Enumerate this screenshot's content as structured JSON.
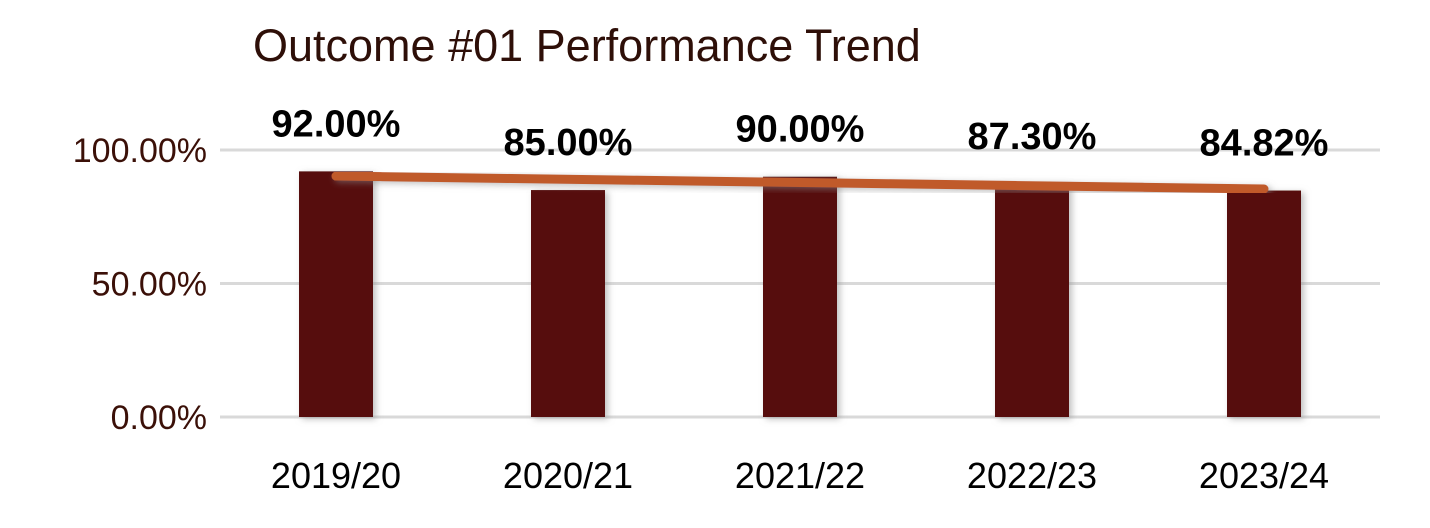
{
  "chart_data": {
    "type": "bar",
    "title": "Outcome #01 Performance Trend",
    "xlabel": "",
    "ylabel": "",
    "categories": [
      "2019/20",
      "2020/21",
      "2021/22",
      "2022/23",
      "2023/24"
    ],
    "values": [
      92.0,
      85.0,
      90.0,
      87.3,
      84.82
    ],
    "data_labels": [
      "92.00%",
      "85.00%",
      "90.00%",
      "87.30%",
      "84.82%"
    ],
    "y_axis": {
      "min": 0,
      "max": 100,
      "ticks": [
        {
          "value": 100,
          "label": "100.00%"
        },
        {
          "value": 50,
          "label": "50.00%"
        },
        {
          "value": 0,
          "label": "0.00%"
        }
      ]
    },
    "grid": "horizontal",
    "legend": "none",
    "trendline": {
      "type": "linear",
      "start_value": 90.24,
      "end_value": 85.41
    },
    "colors": {
      "bar": "#561008",
      "trendline": "#C05A2C",
      "gridline": "#D9D9D9",
      "title_text": "#2E0F08",
      "y_tick_text": "#3B1008",
      "category_text": "#000000",
      "data_label_text": "#000000",
      "background": "#FFFFFF"
    }
  }
}
